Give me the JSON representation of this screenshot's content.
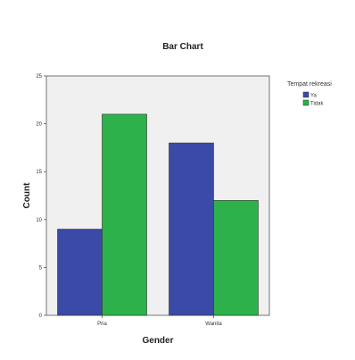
{
  "chart_data": {
    "type": "bar",
    "title": "Bar Chart",
    "xlabel": "Gender",
    "ylabel": "Count",
    "categories": [
      "Pria",
      "Wanita"
    ],
    "series": [
      {
        "name": "Ya",
        "values": [
          9,
          18
        ],
        "color": "#3b4aa6"
      },
      {
        "name": "Tidak",
        "values": [
          21,
          12
        ],
        "color": "#2db14a"
      }
    ],
    "ylim": [
      0,
      25
    ],
    "yticks": [
      0,
      5,
      10,
      15,
      20,
      25
    ],
    "ytick_labels": [
      "0",
      "5",
      "10",
      "15",
      "20",
      "25"
    ],
    "legend": {
      "title": "Tempat rekreasi",
      "position": "right"
    },
    "plot_background": "#f0f0f0",
    "grid": false
  }
}
